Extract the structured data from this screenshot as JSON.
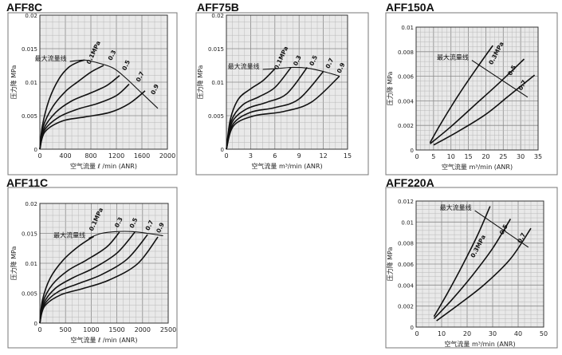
{
  "chart_data": [
    {
      "id": "aff8c",
      "title": "AFF8C",
      "type": "line",
      "xlabel": "空气流量 ℓ /min (ANR)",
      "ylabel": "压力降 MPa",
      "xlim": [
        0,
        2000
      ],
      "ylim": [
        0,
        0.02
      ],
      "xticks": [
        "0",
        "400",
        "800",
        "1200",
        "1600",
        "2000"
      ],
      "xtick_values": [
        0,
        400,
        800,
        1200,
        1600,
        2000
      ],
      "yticks": [
        "0.005",
        "0.01",
        "0.015",
        "0.02"
      ],
      "ytick_values": [
        0.005,
        0.01,
        0.015,
        0.02
      ],
      "grid": true,
      "max_flow_label": "最大流量线",
      "max_flow_line": {
        "x": [
          470,
          700,
          900,
          1150,
          1350,
          1550,
          1850
        ],
        "y": [
          0.0131,
          0.0133,
          0.0129,
          0.0121,
          0.0106,
          0.0088,
          0.0061
        ]
      },
      "series": [
        {
          "name": "0.1MPa",
          "x": [
            0,
            40,
            150,
            300,
            450,
            600,
            700
          ],
          "y": [
            0,
            0.0035,
            0.0075,
            0.0105,
            0.0122,
            0.013,
            0.0133
          ]
        },
        {
          "name": "0.3",
          "x": [
            0,
            50,
            200,
            400,
            600,
            800,
            1000
          ],
          "y": [
            0,
            0.0033,
            0.0063,
            0.0086,
            0.0101,
            0.0115,
            0.0125
          ]
        },
        {
          "name": "0.5",
          "x": [
            0,
            60,
            250,
            500,
            800,
            1050,
            1250
          ],
          "y": [
            0,
            0.003,
            0.0055,
            0.0072,
            0.0084,
            0.0095,
            0.011
          ]
        },
        {
          "name": "0.7",
          "x": [
            0,
            70,
            300,
            600,
            900,
            1200,
            1400
          ],
          "y": [
            0,
            0.0028,
            0.0048,
            0.006,
            0.0068,
            0.008,
            0.0097
          ]
        },
        {
          "name": "0.9",
          "x": [
            0,
            80,
            350,
            700,
            1100,
            1400,
            1650
          ],
          "y": [
            0,
            0.0026,
            0.0042,
            0.0048,
            0.0055,
            0.0068,
            0.0087
          ]
        }
      ],
      "series_labels": [
        {
          "text": "0.1MPa",
          "x": 870,
          "y": 0.0143,
          "angle": -65
        },
        {
          "text": "0.3",
          "x": 1160,
          "y": 0.0139,
          "angle": -65
        },
        {
          "text": "0.5",
          "x": 1380,
          "y": 0.0124,
          "angle": -65
        },
        {
          "text": "0.7",
          "x": 1600,
          "y": 0.0107,
          "angle": -65
        },
        {
          "text": "0.9",
          "x": 1830,
          "y": 0.0088,
          "angle": -65
        }
      ]
    },
    {
      "id": "aff75b",
      "title": "AFF75B",
      "type": "line",
      "xlabel": "空气流量 m³/min (ANR)",
      "ylabel": "压力降 MPa",
      "xlim": [
        0,
        15
      ],
      "ylim": [
        0,
        0.02
      ],
      "xticks": [
        "0",
        "3",
        "6",
        "9",
        "12",
        "15"
      ],
      "xtick_values": [
        0,
        3,
        6,
        9,
        12,
        15
      ],
      "yticks": [
        "0.005",
        "0.01",
        "0.015",
        "0.02"
      ],
      "ytick_values": [
        0.005,
        0.01,
        0.015,
        0.02
      ],
      "grid": true,
      "max_flow_label": "最大流量线",
      "max_flow_line": {
        "x": [
          4.5,
          6,
          8,
          10,
          12,
          14
        ],
        "y": [
          0.0119,
          0.012,
          0.0122,
          0.0121,
          0.0116,
          0.0109
        ]
      },
      "series": [
        {
          "name": "0.1MPa",
          "x": [
            0,
            0.5,
            1.5,
            3,
            4.5,
            6
          ],
          "y": [
            0,
            0.0045,
            0.0075,
            0.009,
            0.0102,
            0.012
          ]
        },
        {
          "name": "0.3",
          "x": [
            0,
            0.6,
            2,
            4,
            6,
            8
          ],
          "y": [
            0,
            0.0042,
            0.0066,
            0.0078,
            0.0092,
            0.0122
          ]
        },
        {
          "name": "0.5",
          "x": [
            0,
            0.7,
            2.5,
            5,
            7.5,
            10
          ],
          "y": [
            0,
            0.004,
            0.006,
            0.007,
            0.0083,
            0.0122
          ]
        },
        {
          "name": "0.7",
          "x": [
            0,
            0.8,
            3,
            6,
            9,
            12
          ],
          "y": [
            0,
            0.0037,
            0.0055,
            0.0062,
            0.0075,
            0.0116
          ]
        },
        {
          "name": "0.9",
          "x": [
            0,
            0.9,
            3.5,
            7,
            10.5,
            14
          ],
          "y": [
            0,
            0.0035,
            0.005,
            0.0056,
            0.007,
            0.0109
          ]
        }
      ],
      "series_labels": [
        {
          "text": "0.1MPa",
          "x": 7.0,
          "y": 0.0135,
          "angle": -65
        },
        {
          "text": "0.3",
          "x": 9.0,
          "y": 0.0131,
          "angle": -65
        },
        {
          "text": "0.5",
          "x": 11.0,
          "y": 0.0131,
          "angle": -65
        },
        {
          "text": "0.7",
          "x": 13.0,
          "y": 0.0127,
          "angle": -65
        },
        {
          "text": "0.9",
          "x": 14.4,
          "y": 0.012,
          "angle": -65
        }
      ]
    },
    {
      "id": "aff150a",
      "title": "AFF150A",
      "type": "line",
      "xlabel": "空气流量 m³/min (ANR)",
      "ylabel": "压力降 MPa",
      "xlim": [
        0,
        35
      ],
      "ylim": [
        0,
        0.01
      ],
      "xticks": [
        "5",
        "10",
        "15",
        "20",
        "25",
        "30",
        "35"
      ],
      "xtick_values": [
        5,
        10,
        15,
        20,
        25,
        30,
        35
      ],
      "yticks": [
        "0.002",
        "0.004",
        "0.006",
        "0.008",
        "0.01"
      ],
      "ytick_values": [
        0.002,
        0.004,
        0.006,
        0.008,
        0.01
      ],
      "grid": true,
      "max_flow_label": "最大流量线",
      "max_flow_line": {
        "x": [
          16,
          32
        ],
        "y": [
          0.0073,
          0.0043
        ]
      },
      "series": [
        {
          "name": "0.3MPa",
          "x": [
            4,
            7,
            12,
            17,
            22
          ],
          "y": [
            0.0006,
            0.0021,
            0.0044,
            0.0065,
            0.0085
          ]
        },
        {
          "name": "0.5",
          "x": [
            4,
            10,
            17,
            24,
            31
          ],
          "y": [
            0.0005,
            0.0019,
            0.0037,
            0.0055,
            0.0074
          ]
        },
        {
          "name": "0.7",
          "x": [
            5,
            12,
            20,
            27,
            34
          ],
          "y": [
            0.0004,
            0.0015,
            0.0029,
            0.0045,
            0.0061
          ]
        }
      ],
      "series_labels": [
        {
          "text": "0.3MPa",
          "x": 23.5,
          "y": 0.0078,
          "angle": -62
        },
        {
          "text": "0.5",
          "x": 28.0,
          "y": 0.0064,
          "angle": -62
        },
        {
          "text": "0.7",
          "x": 31.0,
          "y": 0.0052,
          "angle": -62
        }
      ]
    },
    {
      "id": "aff11c",
      "title": "AFF11C",
      "type": "line",
      "xlabel": "空气流量 ℓ /min (ANR)",
      "ylabel": "压力降 MPa",
      "xlim": [
        0,
        2500
      ],
      "ylim": [
        0,
        0.02
      ],
      "xticks": [
        "0",
        "500",
        "1000",
        "1500",
        "2000",
        "2500"
      ],
      "xtick_values": [
        0,
        500,
        1000,
        1500,
        2000,
        2500
      ],
      "yticks": [
        "0.005",
        "0.01",
        "0.015",
        "0.02"
      ],
      "ytick_values": [
        0.005,
        0.01,
        0.015,
        0.02
      ],
      "grid": true,
      "max_flow_label": "最大流量线",
      "max_flow_line": {
        "x": [
          950,
          1200,
          1500,
          1800,
          2100,
          2400
        ],
        "y": [
          0.0142,
          0.015,
          0.0153,
          0.0153,
          0.015,
          0.0146
        ]
      },
      "series": [
        {
          "name": "0.1MPa",
          "x": [
            0,
            50,
            200,
            450,
            750,
            1050
          ],
          "y": [
            0,
            0.0038,
            0.0075,
            0.0105,
            0.0128,
            0.0145
          ]
        },
        {
          "name": "0.3",
          "x": [
            0,
            60,
            250,
            550,
            900,
            1300,
            1550
          ],
          "y": [
            0,
            0.0035,
            0.0065,
            0.0088,
            0.0105,
            0.0127,
            0.0152
          ]
        },
        {
          "name": "0.5",
          "x": [
            0,
            70,
            300,
            650,
            1050,
            1500,
            1850
          ],
          "y": [
            0,
            0.0032,
            0.0058,
            0.0076,
            0.0092,
            0.0117,
            0.0152
          ]
        },
        {
          "name": "0.7",
          "x": [
            0,
            80,
            350,
            750,
            1200,
            1700,
            2100
          ],
          "y": [
            0,
            0.003,
            0.0052,
            0.0066,
            0.0081,
            0.0107,
            0.0148
          ]
        },
        {
          "name": "0.9",
          "x": [
            0,
            90,
            400,
            850,
            1350,
            1900,
            2300
          ],
          "y": [
            0,
            0.0028,
            0.0047,
            0.0058,
            0.0072,
            0.0099,
            0.0144
          ]
        }
      ],
      "series_labels": [
        {
          "text": "0.1MPa",
          "x": 1130,
          "y": 0.0172,
          "angle": -65
        },
        {
          "text": "0.3",
          "x": 1570,
          "y": 0.0167,
          "angle": -65
        },
        {
          "text": "0.5",
          "x": 1860,
          "y": 0.0166,
          "angle": -65
        },
        {
          "text": "0.7",
          "x": 2170,
          "y": 0.0162,
          "angle": -65
        },
        {
          "text": "0.9",
          "x": 2380,
          "y": 0.0158,
          "angle": -65
        }
      ]
    },
    {
      "id": "aff220a",
      "title": "AFF220A",
      "type": "line",
      "xlabel": "空气流量 m³/min (ANR)",
      "ylabel": "压力降 MPa",
      "xlim": [
        0,
        50
      ],
      "ylim": [
        0,
        0.012
      ],
      "xticks": [
        "10",
        "20",
        "30",
        "40",
        "50"
      ],
      "xtick_values": [
        10,
        20,
        30,
        40,
        50
      ],
      "yticks": [
        "0.002",
        "0.004",
        "0.006",
        "0.008",
        "0.01",
        "0.012"
      ],
      "ytick_values": [
        0.002,
        0.004,
        0.006,
        0.008,
        0.01,
        0.012
      ],
      "grid": true,
      "max_flow_label": "最大流量线",
      "max_flow_line": {
        "x": [
          23,
          44
        ],
        "y": [
          0.0111,
          0.0076
        ]
      },
      "series": [
        {
          "name": "0.3MPa",
          "x": [
            7,
            12,
            18,
            24,
            29
          ],
          "y": [
            0.001,
            0.0031,
            0.0058,
            0.0087,
            0.0115
          ]
        },
        {
          "name": "0.5",
          "x": [
            7,
            14,
            22,
            30,
            37
          ],
          "y": [
            0.0008,
            0.0026,
            0.0049,
            0.0075,
            0.0103
          ]
        },
        {
          "name": "0.7",
          "x": [
            8,
            17,
            27,
            37,
            45
          ],
          "y": [
            0.0006,
            0.0022,
            0.0041,
            0.0065,
            0.0094
          ]
        }
      ],
      "series_labels": [
        {
          "text": "0.3MPa",
          "x": 25.0,
          "y": 0.0076,
          "angle": -62
        },
        {
          "text": "0.5",
          "x": 35.0,
          "y": 0.0092,
          "angle": -62
        },
        {
          "text": "0.7",
          "x": 42.0,
          "y": 0.0084,
          "angle": -62
        }
      ]
    }
  ]
}
